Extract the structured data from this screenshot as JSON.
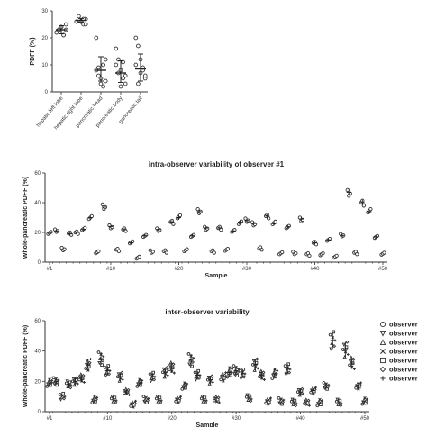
{
  "colors": {
    "marker_stroke": "#333333",
    "marker_fill": "#ffffff",
    "err_bar": "#222222"
  },
  "chart_data": [
    {
      "type": "scatter",
      "id": "a",
      "title": "",
      "ylabel": "PDFF (%)",
      "ylim": [
        0,
        30
      ],
      "yticks": [
        0,
        10,
        20,
        30
      ],
      "categories": [
        "hepatic left lobe",
        "hepatic right lobe",
        "pancreatic head",
        "pancreatic body",
        "pancreatic tail"
      ],
      "points": [
        [
          22,
          23,
          24,
          21,
          25,
          22,
          23,
          24,
          21,
          23
        ],
        [
          26,
          27,
          26,
          25,
          27,
          26,
          28,
          26,
          27,
          25
        ],
        [
          20,
          9,
          5,
          2,
          12,
          8,
          6,
          3,
          10,
          4
        ],
        [
          16,
          12,
          8,
          5,
          3,
          10,
          7,
          2,
          11,
          6
        ],
        [
          20,
          17,
          12,
          8,
          5,
          10,
          3,
          7,
          9,
          6
        ]
      ],
      "mean": [
        23,
        26.5,
        8,
        7,
        8.5
      ],
      "err": [
        [
          21.5,
          24.5
        ],
        [
          25.8,
          27.2
        ],
        [
          4,
          13
        ],
        [
          3.5,
          11.5
        ],
        [
          4,
          14
        ]
      ]
    },
    {
      "type": "scatter",
      "id": "b",
      "panel_label": "",
      "title": "intra-observer variability of observer #1",
      "xlabel": "Sample",
      "ylabel": "Whole-pancreatic PDFF (%)",
      "ylim": [
        0,
        60
      ],
      "yticks": [
        0,
        20,
        40,
        60
      ],
      "n_samples": 50,
      "xticks": [
        {
          "x": 1,
          "label": "#1"
        },
        {
          "x": 10,
          "label": "#10"
        },
        {
          "x": 20,
          "label": "#20"
        },
        {
          "x": 30,
          "label": "#30"
        },
        {
          "x": 40,
          "label": "#40"
        },
        {
          "x": 50,
          "label": "#50"
        }
      ],
      "values": [
        20,
        21,
        9,
        19,
        20,
        22,
        30,
        7,
        37,
        24,
        8,
        22,
        13,
        3,
        18,
        7,
        22,
        7,
        27,
        30,
        8,
        18,
        34,
        23,
        7,
        23,
        8,
        21,
        27,
        28,
        26,
        9,
        31,
        26,
        6,
        24,
        6,
        29,
        5,
        13,
        5,
        15,
        4,
        18,
        47,
        6,
        40,
        34,
        17,
        6
      ]
    },
    {
      "type": "scatter",
      "id": "c",
      "panel_label": "",
      "title": "inter-observer variability",
      "xlabel": "Sample",
      "ylabel": "Whole-pancreatic PDFF (%)",
      "ylim": [
        0,
        60
      ],
      "yticks": [
        0,
        20,
        40,
        60
      ],
      "n_samples": 50,
      "xticks": [
        {
          "x": 1,
          "label": "#1"
        },
        {
          "x": 10,
          "label": "#10"
        },
        {
          "x": 20,
          "label": "#20"
        },
        {
          "x": 30,
          "label": "#30"
        },
        {
          "x": 40,
          "label": "#40"
        },
        {
          "x": 50,
          "label": "#50"
        }
      ],
      "values": [
        19,
        20,
        10,
        18,
        20,
        22,
        31,
        8,
        35,
        27,
        8,
        23,
        13,
        5,
        19,
        8,
        23,
        8,
        26,
        29,
        8,
        17,
        34,
        24,
        8,
        21,
        8,
        23,
        26,
        27,
        25,
        9,
        31,
        24,
        7,
        25,
        7,
        28,
        6,
        13,
        6,
        14,
        6,
        17,
        47,
        6,
        41,
        32,
        17,
        7
      ],
      "legend": [
        {
          "marker": "circle",
          "label": "observer"
        },
        {
          "marker": "triangle-down",
          "label": "observer"
        },
        {
          "marker": "triangle-up",
          "label": "observer"
        },
        {
          "marker": "cross",
          "label": "observer"
        },
        {
          "marker": "square",
          "label": "observer"
        },
        {
          "marker": "diamond",
          "label": "observer"
        },
        {
          "marker": "plus",
          "label": "observer"
        }
      ]
    }
  ]
}
